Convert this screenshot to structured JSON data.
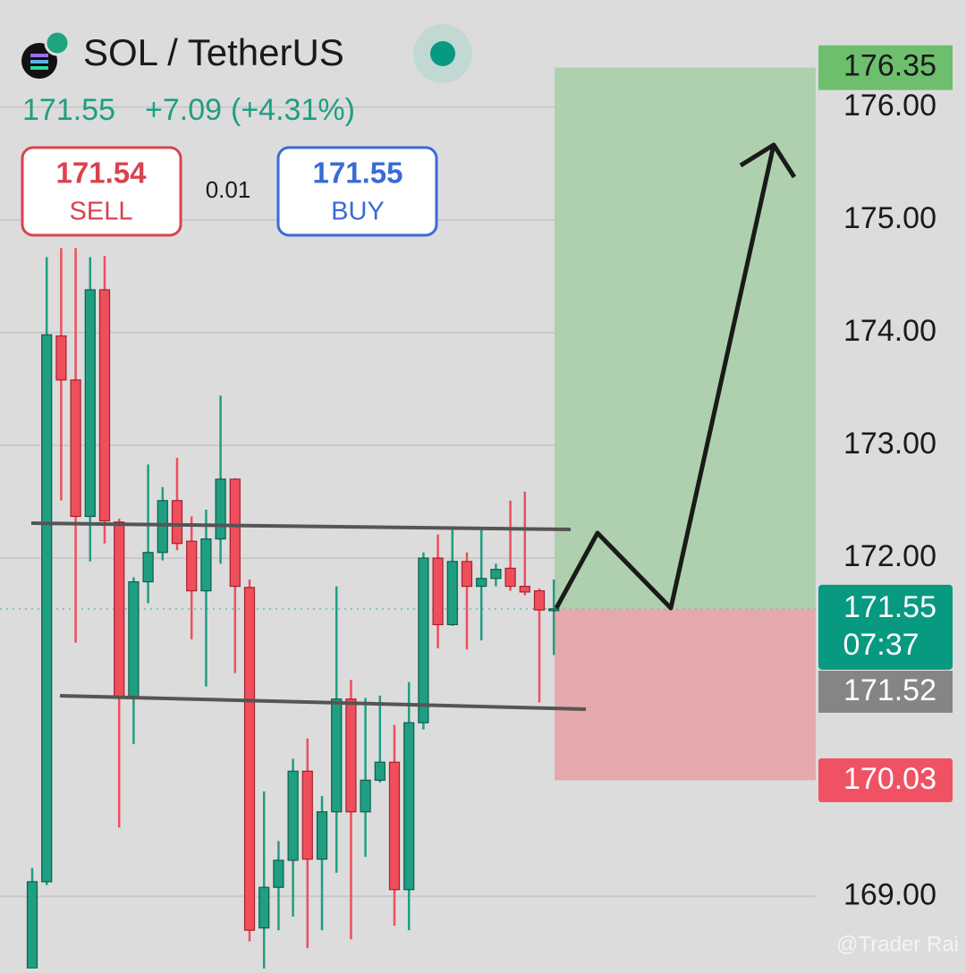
{
  "chart_data": {
    "type": "candlestick",
    "title": "SOL / TetherUS",
    "last": 171.55,
    "change": "+7.09",
    "change_percent": "(+4.31%)",
    "sell": {
      "price": 171.54,
      "label": "SELL"
    },
    "quantity": 0.01,
    "buy": {
      "price": 171.55,
      "label": "BUY"
    },
    "up_color": "#1f9e82",
    "down_color": "#ef4f5c",
    "open": [
      168.36,
      169.13,
      173.97,
      173.58,
      172.37,
      174.38,
      172.32,
      170.76,
      171.79,
      172.05,
      172.51,
      172.15,
      171.71,
      172.17,
      172.7,
      171.74,
      168.72,
      169.08,
      169.32,
      170.11,
      169.33,
      169.75,
      170.75,
      169.75,
      170.03,
      170.19,
      169.06,
      170.54,
      172.0,
      171.41,
      171.97,
      171.75,
      171.82,
      171.91,
      171.75,
      171.71,
      171.54
    ],
    "high": [
      169.25,
      174.67,
      174.75,
      174.75,
      174.67,
      174.68,
      172.35,
      171.83,
      172.83,
      172.63,
      172.89,
      172.37,
      172.43,
      173.44,
      172.71,
      171.81,
      169.93,
      169.49,
      170.22,
      170.4,
      169.89,
      171.75,
      170.92,
      170.76,
      170.78,
      170.52,
      170.9,
      172.05,
      172.21,
      172.25,
      172.05,
      172.27,
      171.95,
      172.51,
      172.59,
      171.73,
      171.81
    ],
    "low": [
      168.36,
      169.1,
      172.51,
      171.25,
      171.97,
      172.13,
      169.61,
      170.35,
      171.6,
      171.98,
      172.07,
      171.28,
      170.86,
      171.95,
      170.98,
      168.6,
      168.36,
      168.7,
      168.82,
      168.54,
      168.7,
      169.21,
      168.62,
      169.35,
      170.01,
      168.74,
      168.7,
      170.48,
      171.2,
      171.4,
      171.19,
      171.27,
      171.75,
      171.71,
      171.67,
      170.72,
      171.14
    ],
    "close": [
      169.13,
      173.98,
      173.58,
      172.37,
      174.38,
      172.33,
      170.76,
      171.79,
      172.05,
      172.51,
      172.13,
      171.71,
      172.17,
      172.7,
      171.75,
      168.7,
      169.08,
      169.32,
      170.11,
      169.33,
      169.75,
      170.75,
      169.75,
      170.03,
      170.19,
      169.06,
      170.54,
      172.0,
      171.41,
      171.97,
      171.75,
      171.82,
      171.9,
      171.75,
      171.7,
      171.54,
      171.55
    ],
    "ylim": [
      168.36,
      176.95
    ],
    "yticks": [
      {
        "value": 169,
        "label": "169.00"
      },
      {
        "value": 172,
        "label": "172.00"
      },
      {
        "value": 173,
        "label": "173.00"
      },
      {
        "value": 174,
        "label": "174.00"
      },
      {
        "value": 175,
        "label": "175.00"
      },
      {
        "value": 176,
        "label": "176.00"
      }
    ],
    "grid": true,
    "position": {
      "target": 176.35,
      "entry": 171.55,
      "stop": 170.03
    },
    "price_label": 171.55,
    "countdown": "07:37",
    "bid_label": 171.52,
    "watermark": "@Trader Rai"
  }
}
